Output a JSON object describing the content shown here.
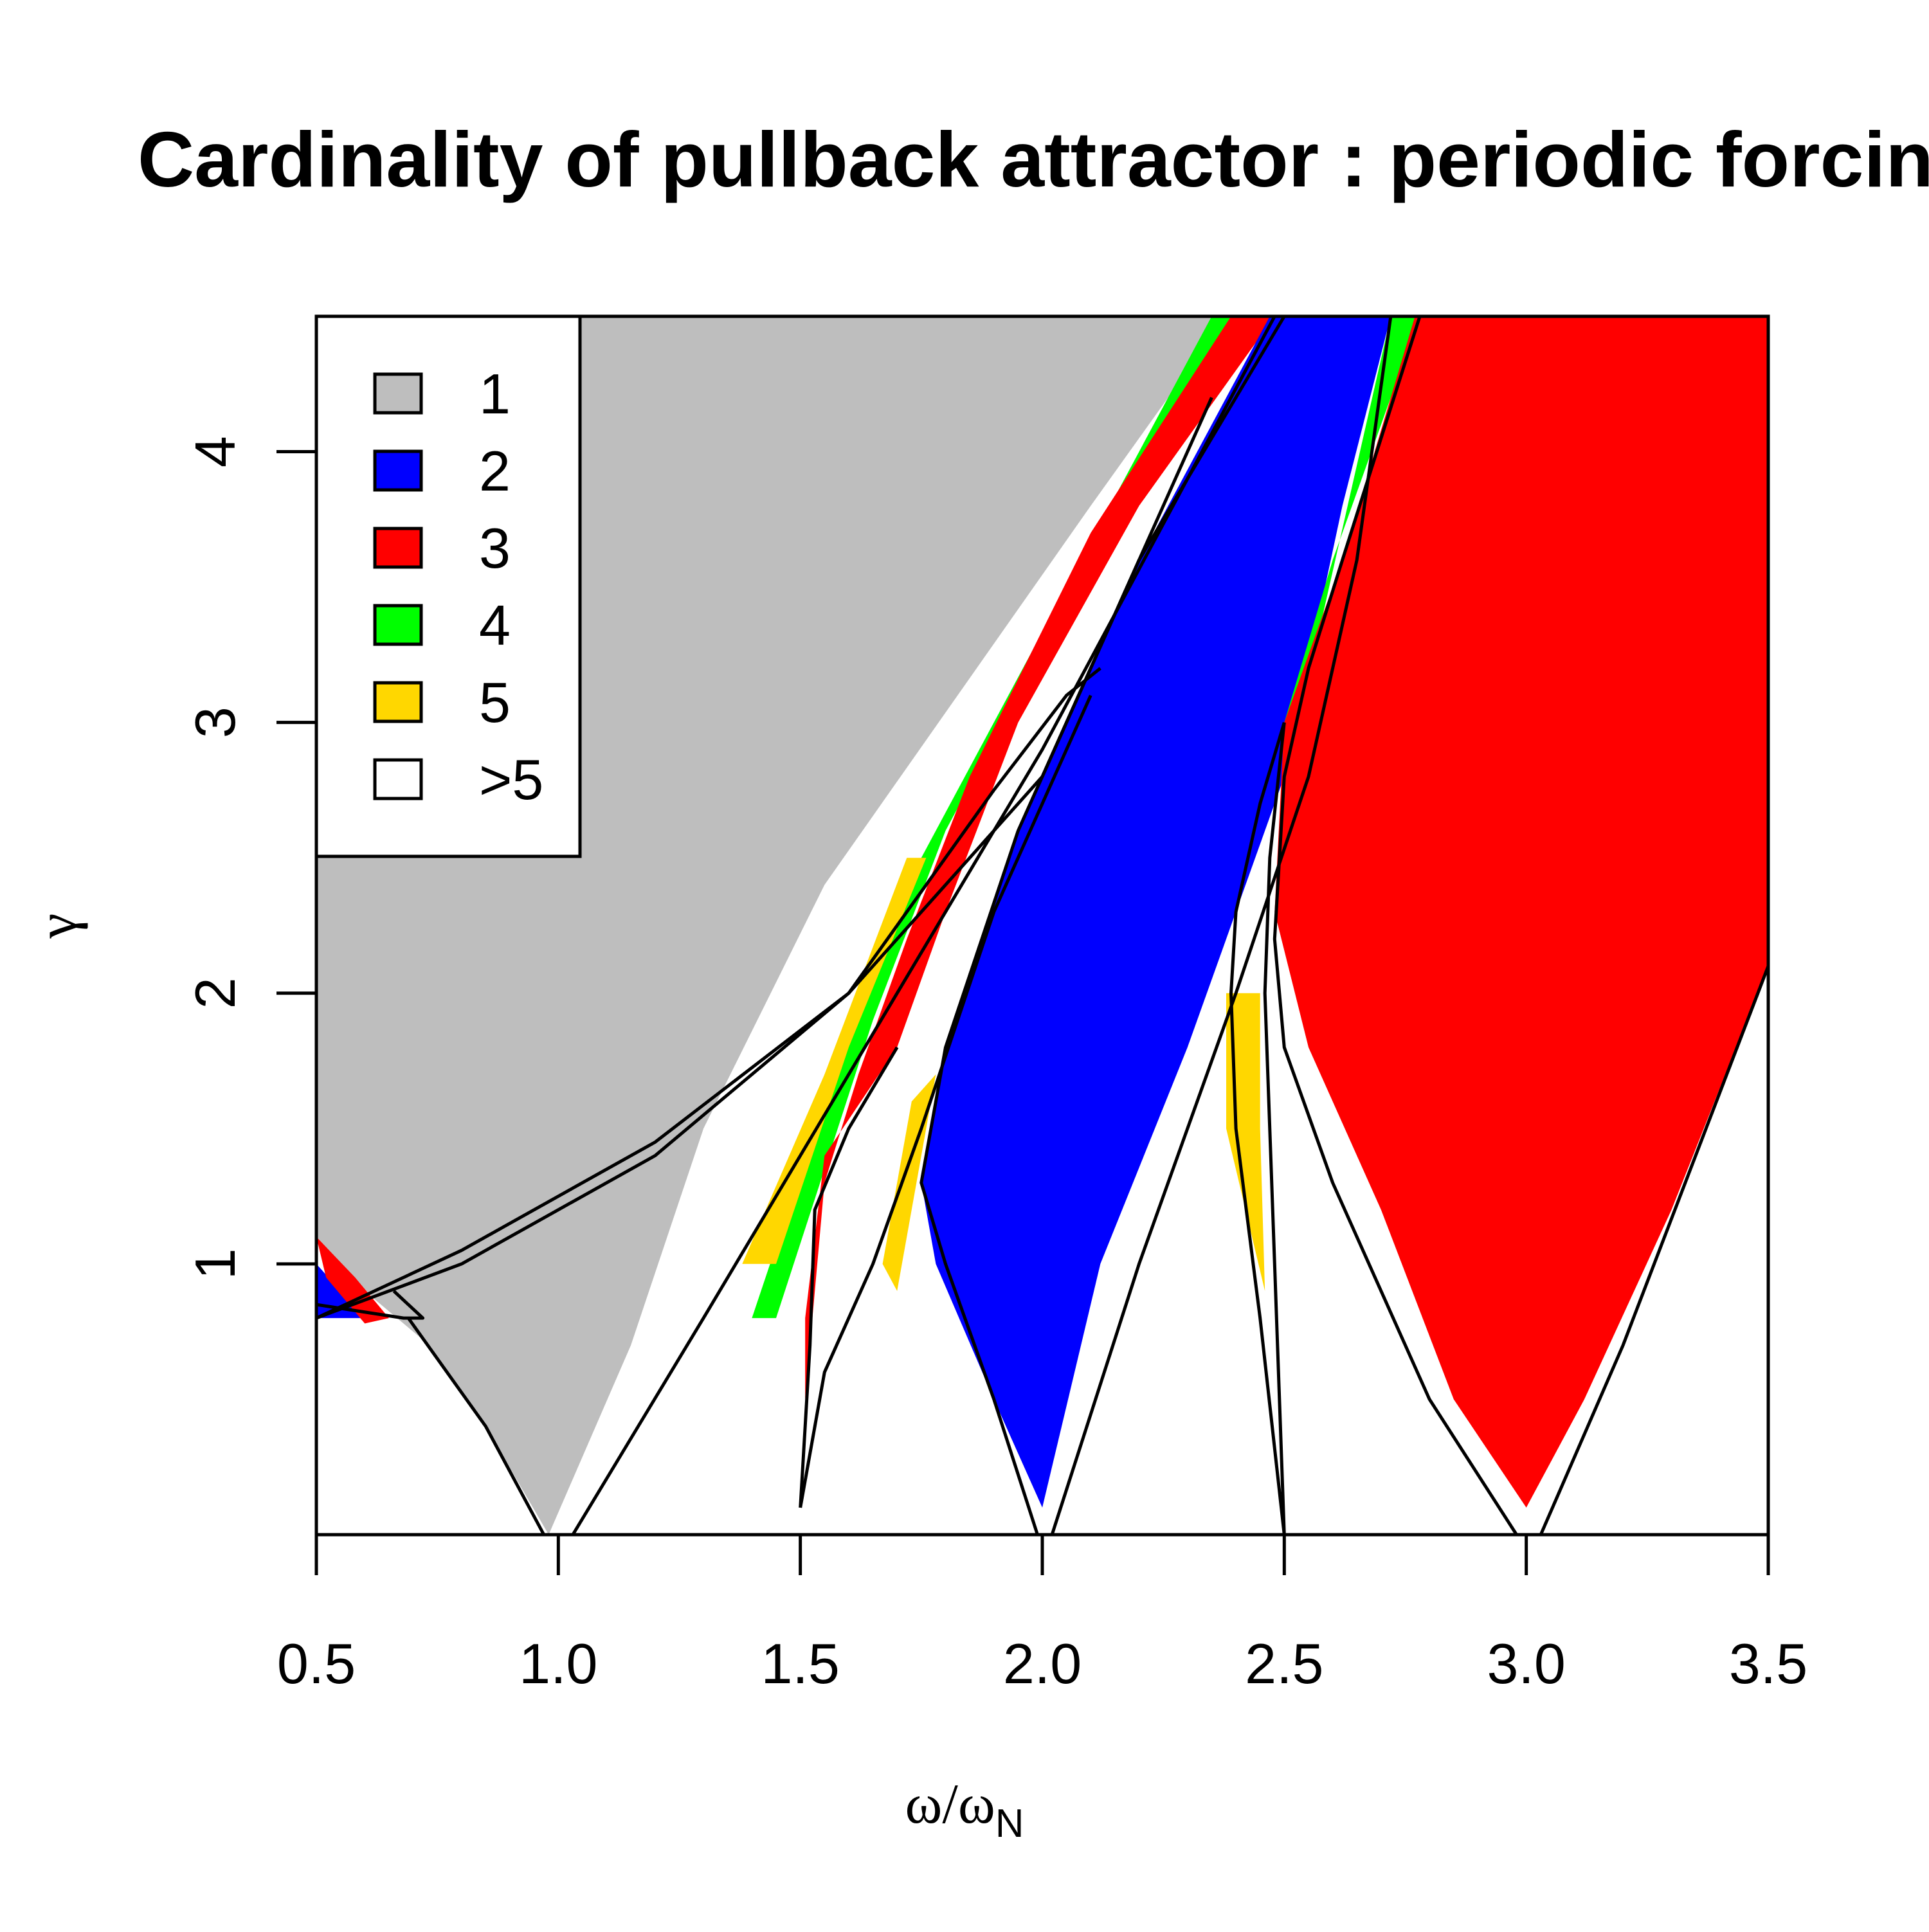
{
  "chart_data": {
    "type": "heatmap",
    "title": "Cardinality of pullback attractor : periodic forcing",
    "xlabel": "ω/ω",
    "xlabel_sub": "N",
    "ylabel": "γ",
    "xlim": [
      0.5,
      3.5
    ],
    "ylim": [
      0.0,
      4.5
    ],
    "x_ticks": [
      {
        "value": 0.5,
        "label": "0.5"
      },
      {
        "value": 1.0,
        "label": "1.0"
      },
      {
        "value": 1.5,
        "label": "1.5"
      },
      {
        "value": 2.0,
        "label": "2.0"
      },
      {
        "value": 2.5,
        "label": "2.5"
      },
      {
        "value": 3.0,
        "label": "3.0"
      },
      {
        "value": 3.5,
        "label": "3.5"
      }
    ],
    "y_ticks": [
      {
        "value": 1,
        "label": "1"
      },
      {
        "value": 2,
        "label": "2"
      },
      {
        "value": 3,
        "label": "3"
      },
      {
        "value": 4,
        "label": "4"
      }
    ],
    "legend": {
      "placement": "top-left",
      "entries": [
        {
          "label": "1",
          "color": "#bebebe"
        },
        {
          "label": "2",
          "color": "#0000ff"
        },
        {
          "label": "3",
          "color": "#ff0000"
        },
        {
          "label": "4",
          "color": "#00ff00"
        },
        {
          "label": "5",
          "color": "#ffd700"
        },
        {
          "label": ">5",
          "color": "#ffffff"
        }
      ]
    },
    "regions": [
      {
        "cardinality": "1",
        "color": "#bebebe",
        "polygon": [
          [
            0.5,
            4.5
          ],
          [
            2.38,
            4.5
          ],
          [
            2.1,
            3.8
          ],
          [
            1.55,
            2.4
          ],
          [
            1.3,
            1.5
          ],
          [
            1.15,
            0.7
          ],
          [
            0.98,
            0.0
          ],
          [
            0.85,
            0.4
          ],
          [
            0.72,
            0.72
          ],
          [
            0.6,
            0.9
          ],
          [
            0.5,
            1.1
          ]
        ]
      },
      {
        "cardinality": "4",
        "color": "#00ff00",
        "polygon": [
          [
            2.35,
            4.5
          ],
          [
            2.42,
            4.5
          ],
          [
            2.1,
            3.6
          ],
          [
            1.8,
            2.6
          ],
          [
            1.65,
            1.9
          ],
          [
            1.45,
            0.8
          ],
          [
            1.4,
            0.8
          ],
          [
            1.55,
            1.6
          ],
          [
            1.75,
            2.5
          ],
          [
            2.05,
            3.5
          ]
        ]
      },
      {
        "cardinality": "5",
        "color": "#ffd700",
        "polygon": [
          [
            1.72,
            2.5
          ],
          [
            1.76,
            2.5
          ],
          [
            1.6,
            1.8
          ],
          [
            1.45,
            1.0
          ],
          [
            1.38,
            1.0
          ],
          [
            1.55,
            1.7
          ]
        ]
      },
      {
        "cardinality": "3",
        "color": "#ff0000",
        "polygon": [
          [
            2.39,
            4.5
          ],
          [
            2.48,
            4.5
          ],
          [
            2.2,
            3.8
          ],
          [
            1.95,
            3.0
          ],
          [
            1.8,
            2.3
          ],
          [
            1.7,
            1.8
          ],
          [
            1.55,
            1.4
          ],
          [
            1.51,
            0.8
          ],
          [
            1.51,
            0.5
          ],
          [
            1.55,
            1.3
          ],
          [
            1.62,
            1.7
          ],
          [
            1.72,
            2.2
          ],
          [
            1.85,
            2.8
          ],
          [
            2.1,
            3.7
          ]
        ]
      },
      {
        "cardinality": "5",
        "color": "#ffd700",
        "polygon": [
          [
            1.78,
            1.7
          ],
          [
            1.73,
            1.6
          ],
          [
            1.67,
            1.0
          ],
          [
            1.7,
            0.9
          ],
          [
            1.74,
            1.3
          ]
        ]
      },
      {
        "cardinality": "2",
        "color": "#0000ff",
        "polygon": [
          [
            2.47,
            4.5
          ],
          [
            2.72,
            4.5
          ],
          [
            2.62,
            3.8
          ],
          [
            2.5,
            2.8
          ],
          [
            2.3,
            1.8
          ],
          [
            2.12,
            1.0
          ],
          [
            2.0,
            0.1
          ],
          [
            1.9,
            0.5
          ],
          [
            1.78,
            1.0
          ],
          [
            1.75,
            1.3
          ],
          [
            1.8,
            1.8
          ],
          [
            1.95,
            2.6
          ],
          [
            2.2,
            3.6
          ]
        ]
      },
      {
        "cardinality": "5",
        "color": "#ffd700",
        "polygon": [
          [
            2.38,
            2.0
          ],
          [
            2.45,
            2.0
          ],
          [
            2.45,
            1.5
          ],
          [
            2.46,
            0.9
          ],
          [
            2.42,
            1.2
          ],
          [
            2.38,
            1.5
          ]
        ]
      },
      {
        "cardinality": "4",
        "color": "#00ff00",
        "polygon": [
          [
            2.72,
            4.5
          ],
          [
            2.78,
            4.5
          ],
          [
            2.6,
            3.6
          ],
          [
            2.5,
            3.0
          ],
          [
            2.5,
            2.8
          ],
          [
            2.58,
            3.4
          ]
        ]
      },
      {
        "cardinality": "3",
        "color": "#ff0000",
        "polygon": [
          [
            2.77,
            4.5
          ],
          [
            3.5,
            4.5
          ],
          [
            3.5,
            2.1
          ],
          [
            3.3,
            1.2
          ],
          [
            3.12,
            0.5
          ],
          [
            3.0,
            0.1
          ],
          [
            2.85,
            0.5
          ],
          [
            2.7,
            1.2
          ],
          [
            2.55,
            1.8
          ],
          [
            2.48,
            2.3
          ],
          [
            2.5,
            3.0
          ],
          [
            2.62,
            3.6
          ]
        ]
      },
      {
        "cardinality": "2",
        "color": "#0000ff",
        "polygon": [
          [
            0.5,
            1.0
          ],
          [
            0.55,
            0.9
          ],
          [
            0.6,
            0.8
          ],
          [
            0.55,
            0.8
          ],
          [
            0.5,
            0.8
          ]
        ]
      },
      {
        "cardinality": "3",
        "color": "#ff0000",
        "polygon": [
          [
            0.5,
            1.1
          ],
          [
            0.58,
            0.95
          ],
          [
            0.65,
            0.8
          ],
          [
            0.6,
            0.78
          ],
          [
            0.52,
            0.95
          ]
        ]
      }
    ],
    "curves": [
      [
        [
          0.5,
          0.8
        ],
        [
          0.8,
          1.05
        ],
        [
          1.2,
          1.45
        ],
        [
          1.6,
          2.0
        ],
        [
          2.0,
          2.8
        ],
        [
          2.35,
          4.2
        ]
      ],
      [
        [
          0.5,
          0.8
        ],
        [
          0.8,
          1.0
        ],
        [
          1.2,
          1.4
        ],
        [
          1.6,
          2.0
        ],
        [
          1.9,
          2.75
        ],
        [
          2.05,
          3.1
        ],
        [
          2.12,
          3.2
        ]
      ],
      [
        [
          0.5,
          0.85
        ],
        [
          0.68,
          0.8
        ],
        [
          0.72,
          0.8
        ],
        [
          0.66,
          0.9
        ]
      ],
      [
        [
          0.69,
          0.8
        ],
        [
          0.85,
          0.4
        ],
        [
          0.97,
          0.0
        ]
      ],
      [
        [
          1.03,
          0.0
        ],
        [
          1.3,
          0.8
        ],
        [
          1.7,
          2.0
        ],
        [
          2.0,
          2.9
        ],
        [
          2.3,
          3.9
        ],
        [
          2.48,
          4.5
        ]
      ],
      [
        [
          1.5,
          0.1
        ],
        [
          1.52,
          0.7
        ],
        [
          1.53,
          1.2
        ],
        [
          1.6,
          1.5
        ],
        [
          1.7,
          1.8
        ]
      ],
      [
        [
          1.5,
          0.1
        ],
        [
          1.55,
          0.6
        ],
        [
          1.65,
          1.0
        ],
        [
          1.75,
          1.5
        ],
        [
          1.9,
          2.3
        ],
        [
          2.1,
          3.1
        ]
      ],
      [
        [
          1.99,
          0.0
        ],
        [
          1.9,
          0.5
        ],
        [
          1.8,
          1.0
        ],
        [
          1.75,
          1.3
        ],
        [
          1.8,
          1.8
        ],
        [
          1.95,
          2.6
        ],
        [
          2.2,
          3.6
        ],
        [
          2.5,
          4.5
        ]
      ],
      [
        [
          2.02,
          0.0
        ],
        [
          2.2,
          1.0
        ],
        [
          2.4,
          2.0
        ],
        [
          2.55,
          2.8
        ],
        [
          2.65,
          3.6
        ],
        [
          2.72,
          4.5
        ]
      ],
      [
        [
          2.5,
          0.0
        ],
        [
          2.45,
          0.8
        ],
        [
          2.4,
          1.5
        ],
        [
          2.39,
          2.0
        ],
        [
          2.4,
          2.3
        ],
        [
          2.45,
          2.7
        ],
        [
          2.5,
          3.0
        ]
      ],
      [
        [
          2.5,
          0.0
        ],
        [
          2.48,
          1.0
        ],
        [
          2.46,
          2.0
        ],
        [
          2.47,
          2.5
        ],
        [
          2.5,
          3.0
        ]
      ],
      [
        [
          2.98,
          0.0
        ],
        [
          2.8,
          0.5
        ],
        [
          2.6,
          1.3
        ],
        [
          2.5,
          1.8
        ],
        [
          2.48,
          2.2
        ],
        [
          2.5,
          2.8
        ],
        [
          2.55,
          3.2
        ],
        [
          2.62,
          3.6
        ],
        [
          2.78,
          4.5
        ]
      ],
      [
        [
          3.03,
          0.0
        ],
        [
          3.2,
          0.7
        ],
        [
          3.35,
          1.4
        ],
        [
          3.5,
          2.1
        ]
      ]
    ]
  }
}
